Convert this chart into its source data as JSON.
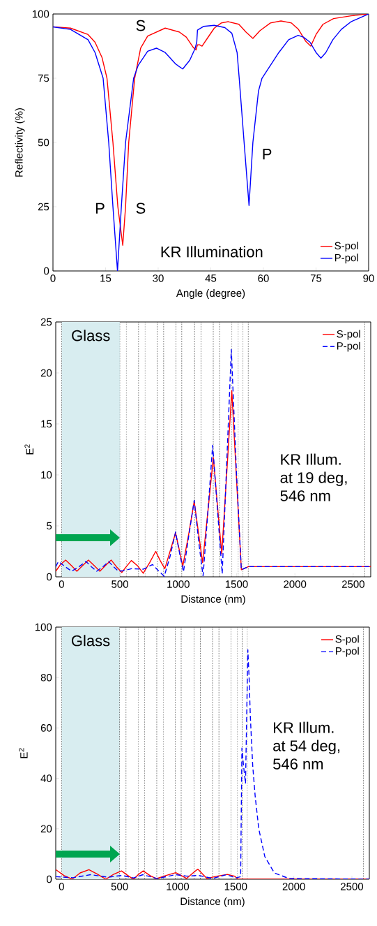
{
  "chart_data": [
    {
      "type": "line",
      "xlabel": "Angle (degree)",
      "ylabel": "Reflectivity (%)",
      "xlim": [
        0,
        90
      ],
      "ylim": [
        0,
        100
      ],
      "xticks": [
        0,
        15,
        30,
        45,
        60,
        75,
        90
      ],
      "yticks": [
        0,
        25,
        50,
        75,
        100
      ],
      "legend": "bottom right",
      "series": [
        {
          "name": "S-pol",
          "color": "#ff0000",
          "line_style": "solid",
          "x": [
            0,
            5,
            10,
            12,
            14,
            15.4,
            17.1,
            18.5,
            19.9,
            20.7,
            21.6,
            23.3,
            25,
            27,
            32,
            36,
            38,
            40,
            40.8,
            41.2,
            41.8,
            42.5,
            44,
            46,
            48,
            50,
            53,
            55,
            57,
            59,
            62,
            65,
            68,
            70,
            72,
            73.5,
            75,
            77,
            80,
            85,
            90
          ],
          "values": [
            95,
            94.5,
            92,
            89,
            83,
            75,
            50,
            25,
            10,
            25,
            50,
            75,
            86.7,
            91.4,
            94.5,
            93,
            91,
            87,
            86,
            88,
            88,
            87.5,
            90.5,
            94.5,
            96.5,
            97,
            96,
            93,
            90.5,
            93.5,
            96.5,
            97.3,
            96.5,
            94,
            89.5,
            87.5,
            92,
            96,
            98.2,
            99.3,
            100
          ]
        },
        {
          "name": "P-pol",
          "color": "#0000ff",
          "line_style": "solid",
          "x": [
            0,
            5,
            10,
            12,
            14.3,
            15.9,
            17.1,
            18.4,
            19.5,
            20.7,
            23,
            24.3,
            27,
            29.5,
            32,
            35,
            37,
            39,
            40.5,
            41,
            41.2,
            43,
            46,
            49,
            51,
            52.5,
            53.1,
            54.5,
            55.9,
            57,
            58.6,
            59.6,
            62,
            64.4,
            67.2,
            69.9,
            71.4,
            73.3,
            75,
            76.4,
            77.8,
            79.8,
            82.2,
            85,
            90
          ],
          "values": [
            95,
            94,
            90,
            85,
            75,
            50,
            25,
            0,
            25,
            50,
            75,
            80,
            85.5,
            86.7,
            85,
            80.5,
            78.6,
            82,
            86.5,
            89,
            93.7,
            95.2,
            95.6,
            94.7,
            92.5,
            85,
            75,
            50,
            25.5,
            50,
            70,
            75,
            80,
            85,
            90,
            91.7,
            91,
            89,
            85,
            82.8,
            85,
            90,
            94,
            97,
            100
          ]
        }
      ],
      "annotations": [
        "S",
        "P",
        "S",
        "P",
        "KR Illumination"
      ]
    },
    {
      "type": "line",
      "xlabel": "Distance (nm)",
      "ylabel": "E$^{2}$",
      "xlim": [
        -50,
        2650
      ],
      "ylim": [
        0,
        25
      ],
      "xticks": [
        0,
        500,
        1000,
        1500,
        2000,
        2500
      ],
      "yticks": [
        0,
        5,
        10,
        15,
        20,
        25
      ],
      "legend": "top right",
      "bands": [
        {
          "axis": "x",
          "from": 0,
          "to": 500,
          "label": "Glass",
          "color": "#d8edf0"
        }
      ],
      "ref_lines": [
        {
          "axis": "x",
          "value": 0,
          "line_style": "dashed"
        },
        {
          "axis": "x",
          "value": 500,
          "line_style": "dashed"
        },
        {
          "axis": "x",
          "value": 555,
          "line_style": "dashed"
        },
        {
          "axis": "x",
          "value": 660,
          "line_style": "dashed"
        },
        {
          "axis": "x",
          "value": 715,
          "line_style": "dashed"
        },
        {
          "axis": "x",
          "value": 820,
          "line_style": "dashed"
        },
        {
          "axis": "x",
          "value": 875,
          "line_style": "dashed"
        },
        {
          "axis": "x",
          "value": 980,
          "line_style": "dashed"
        },
        {
          "axis": "x",
          "value": 1030,
          "line_style": "dashed"
        },
        {
          "axis": "x",
          "value": 1140,
          "line_style": "dashed"
        },
        {
          "axis": "x",
          "value": 1195,
          "line_style": "dashed"
        },
        {
          "axis": "x",
          "value": 1300,
          "line_style": "dashed"
        },
        {
          "axis": "x",
          "value": 1355,
          "line_style": "dashed"
        },
        {
          "axis": "x",
          "value": 1460,
          "line_style": "dashed"
        },
        {
          "axis": "x",
          "value": 1515,
          "line_style": "dashed"
        },
        {
          "axis": "x",
          "value": 1555,
          "line_style": "dashed"
        },
        {
          "axis": "x",
          "value": 1600,
          "line_style": "dashed"
        },
        {
          "axis": "x",
          "value": 2600,
          "line_style": "dashed"
        }
      ],
      "series": [
        {
          "name": "S-pol",
          "color": "#ff0000",
          "line_style": "solid",
          "x": [
            -50,
            -10,
            35,
            85,
            131,
            180,
            230,
            280,
            328,
            375,
            425,
            470,
            516,
            555,
            598,
            650,
            700,
            755,
            807,
            845,
            885,
            930,
            977,
            1010,
            1039,
            1090,
            1137,
            1175,
            1209,
            1255,
            1301,
            1340,
            1373,
            1415,
            1459,
            1500,
            1541,
            1602,
            2650
          ],
          "values": [
            0.55,
            1.2,
            1.65,
            1.1,
            0.55,
            1.1,
            1.65,
            1.1,
            0.55,
            1.1,
            1.65,
            1.0,
            0.43,
            1.0,
            1.6,
            1.1,
            0.35,
            1.4,
            2.5,
            1.6,
            0.8,
            2.5,
            4.3,
            2.6,
            1.05,
            4.2,
            7.4,
            4.2,
            1.4,
            6.5,
            11.7,
            6.5,
            2.25,
            10,
            18.25,
            9.5,
            0.7,
            1.0,
            1.0
          ]
        },
        {
          "name": "P-pol",
          "color": "#0000ff",
          "line_style": "dashed",
          "x": [
            -50,
            -27,
            30,
            86,
            150,
            209,
            255,
            301,
            355,
            404,
            445,
            486,
            530,
            600,
            700,
            780,
            830,
            880,
            930,
            977,
            1010,
            1045,
            1090,
            1137,
            1180,
            1213,
            1255,
            1295,
            1340,
            1377,
            1415,
            1455,
            1500,
            1541,
            1602,
            2650
          ],
          "values": [
            1.0,
            1.5,
            1.0,
            0.55,
            1.0,
            1.5,
            1.0,
            0.55,
            1.0,
            1.5,
            1.0,
            0.55,
            0.6,
            0.8,
            0.75,
            1.2,
            0.6,
            0.05,
            2.0,
            4.4,
            2.4,
            0.5,
            4.0,
            7.5,
            3.0,
            0.1,
            6.5,
            12.9,
            6.0,
            0.3,
            11,
            22.3,
            10,
            0.7,
            1.0,
            1.0
          ]
        }
      ],
      "annotations": [
        "KR Illum.",
        "at 19 deg,",
        "546 nm"
      ]
    },
    {
      "type": "line",
      "xlabel": "Distance (nm)",
      "ylabel": "E$^{2}$",
      "xlim": [
        -50,
        2650
      ],
      "ylim": [
        0,
        100
      ],
      "xticks": [
        0,
        500,
        1000,
        1500,
        2000,
        2500
      ],
      "yticks": [
        0,
        20,
        40,
        60,
        80,
        100
      ],
      "legend": "top right",
      "bands": [
        {
          "axis": "x",
          "from": 0,
          "to": 500,
          "label": "Glass",
          "color": "#d8edf0"
        }
      ],
      "ref_lines": [
        {
          "axis": "x",
          "value": 0,
          "line_style": "dashed"
        },
        {
          "axis": "x",
          "value": 500,
          "line_style": "dashed"
        },
        {
          "axis": "x",
          "value": 555,
          "line_style": "dashed"
        },
        {
          "axis": "x",
          "value": 660,
          "line_style": "dashed"
        },
        {
          "axis": "x",
          "value": 715,
          "line_style": "dashed"
        },
        {
          "axis": "x",
          "value": 820,
          "line_style": "dashed"
        },
        {
          "axis": "x",
          "value": 875,
          "line_style": "dashed"
        },
        {
          "axis": "x",
          "value": 980,
          "line_style": "dashed"
        },
        {
          "axis": "x",
          "value": 1030,
          "line_style": "dashed"
        },
        {
          "axis": "x",
          "value": 1140,
          "line_style": "dashed"
        },
        {
          "axis": "x",
          "value": 1195,
          "line_style": "dashed"
        },
        {
          "axis": "x",
          "value": 1300,
          "line_style": "dashed"
        },
        {
          "axis": "x",
          "value": 1355,
          "line_style": "dashed"
        },
        {
          "axis": "x",
          "value": 1460,
          "line_style": "dashed"
        },
        {
          "axis": "x",
          "value": 1515,
          "line_style": "dashed"
        },
        {
          "axis": "x",
          "value": 1555,
          "line_style": "dashed"
        },
        {
          "axis": "x",
          "value": 1600,
          "line_style": "dashed"
        },
        {
          "axis": "x",
          "value": 2600,
          "line_style": "dashed"
        }
      ],
      "series": [
        {
          "name": "S-pol",
          "color": "#ff0000",
          "line_style": "solid",
          "x": [
            -50,
            20,
            91,
            160,
            236,
            310,
            381,
            450,
            516,
            570,
            620,
            660,
            703,
            760,
            817,
            900,
            983,
            1030,
            1076,
            1125,
            1173,
            1215,
            1252,
            1340,
            1428,
            1490,
            1522,
            2650
          ],
          "values": [
            3.8,
            1.5,
            0,
            2.5,
            3.8,
            2,
            0,
            2,
            3.3,
            1.5,
            0,
            1.8,
            3.3,
            1.5,
            0.2,
            1.5,
            2.6,
            1.5,
            0.3,
            2.2,
            4.0,
            2.0,
            0.3,
            1.2,
            1.9,
            1.2,
            0,
            0
          ]
        },
        {
          "name": "P-pol",
          "color": "#0000ff",
          "line_style": "dashed",
          "x": [
            -50,
            100,
            250,
            400,
            520,
            620,
            700,
            820,
            900,
            980,
            1080,
            1180,
            1300,
            1420,
            1500,
            1542,
            1553,
            1567,
            1584,
            1604,
            1615,
            1625,
            1646,
            1667,
            1698,
            1750,
            1832,
            1957,
            2650
          ],
          "values": [
            1.0,
            0.6,
            1.8,
            0.8,
            1.5,
            0.5,
            1.8,
            0.3,
            1.0,
            1.8,
            1.2,
            1.5,
            0.3,
            1.8,
            0.5,
            1,
            52,
            45,
            38,
            91,
            80,
            65,
            45,
            33,
            20,
            9,
            2.5,
            0.3,
            0
          ]
        }
      ],
      "annotations": [
        "KR Illum.",
        "at 54 deg,",
        "546 nm"
      ]
    }
  ]
}
